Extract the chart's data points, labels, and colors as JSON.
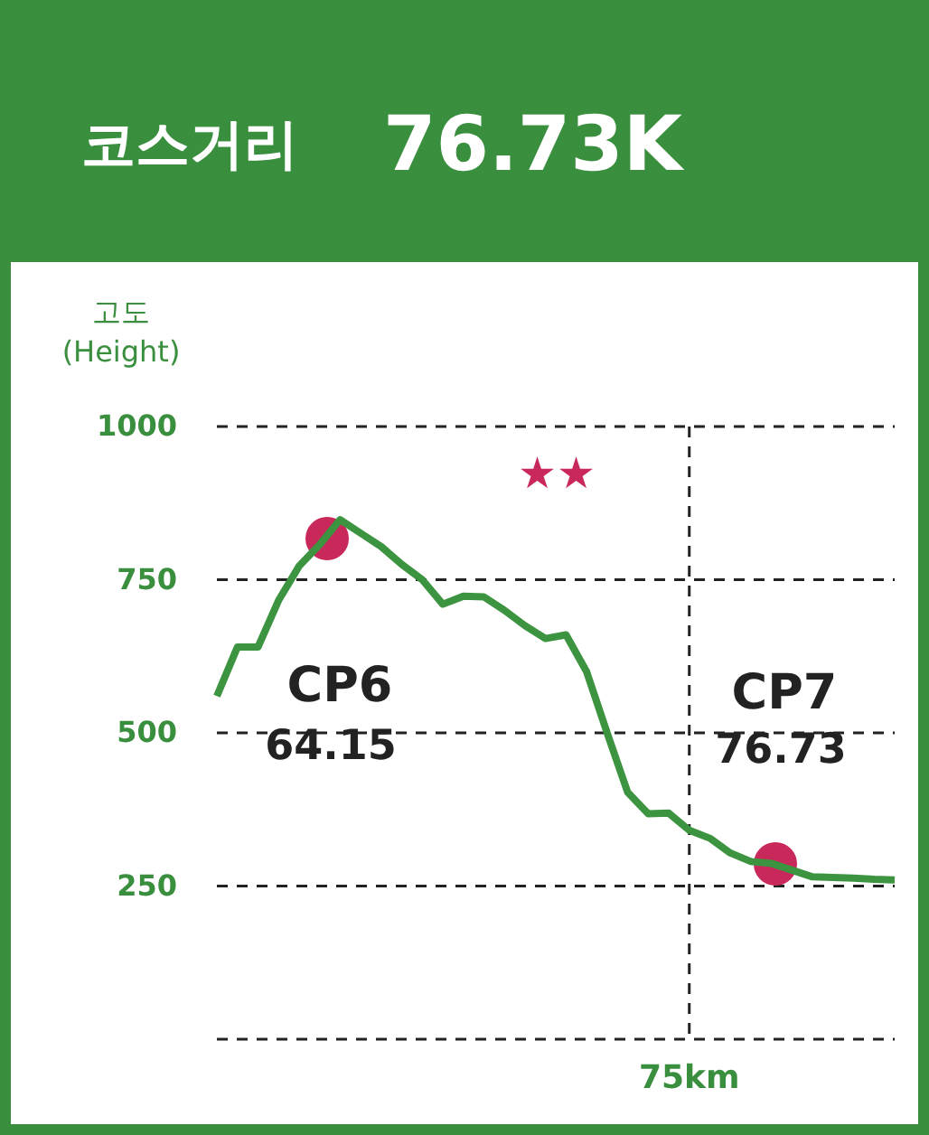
{
  "chart_data": {
    "type": "line",
    "title": "코스거리",
    "subtitle": "76.73K",
    "ylabel": "고도\n(Height)",
    "categories": [
      null,
      null,
      null,
      null,
      null,
      null,
      null,
      null,
      null,
      null,
      null,
      null,
      null,
      null,
      null,
      null,
      null,
      null,
      null,
      null,
      null,
      null,
      null,
      "75km",
      null,
      null,
      null,
      null,
      null,
      null,
      null,
      null,
      null,
      null
    ],
    "ylim": [
      0,
      1000
    ],
    "yticks": [
      {
        "value": 0,
        "label": null
      },
      250,
      500,
      750,
      1000
    ],
    "grid": "y",
    "ref_lines": [
      {
        "axis": "x",
        "value": "75km",
        "line_style": "dashed"
      }
    ],
    "series": [
      {
        "color": "#3c9440",
        "values": [
          560,
          640,
          640,
          716,
          772,
          807,
          848,
          826,
          804,
          775,
          750,
          710,
          723,
          722,
          700,
          675,
          654,
          660,
          600,
          500,
          403,
          368,
          369,
          341,
          328,
          304,
          290,
          287,
          276,
          265,
          264,
          263,
          261,
          260
        ]
      }
    ],
    "annotations": [
      "CP6",
      "64.15",
      "CP7",
      "76.73",
      "★★"
    ]
  }
}
